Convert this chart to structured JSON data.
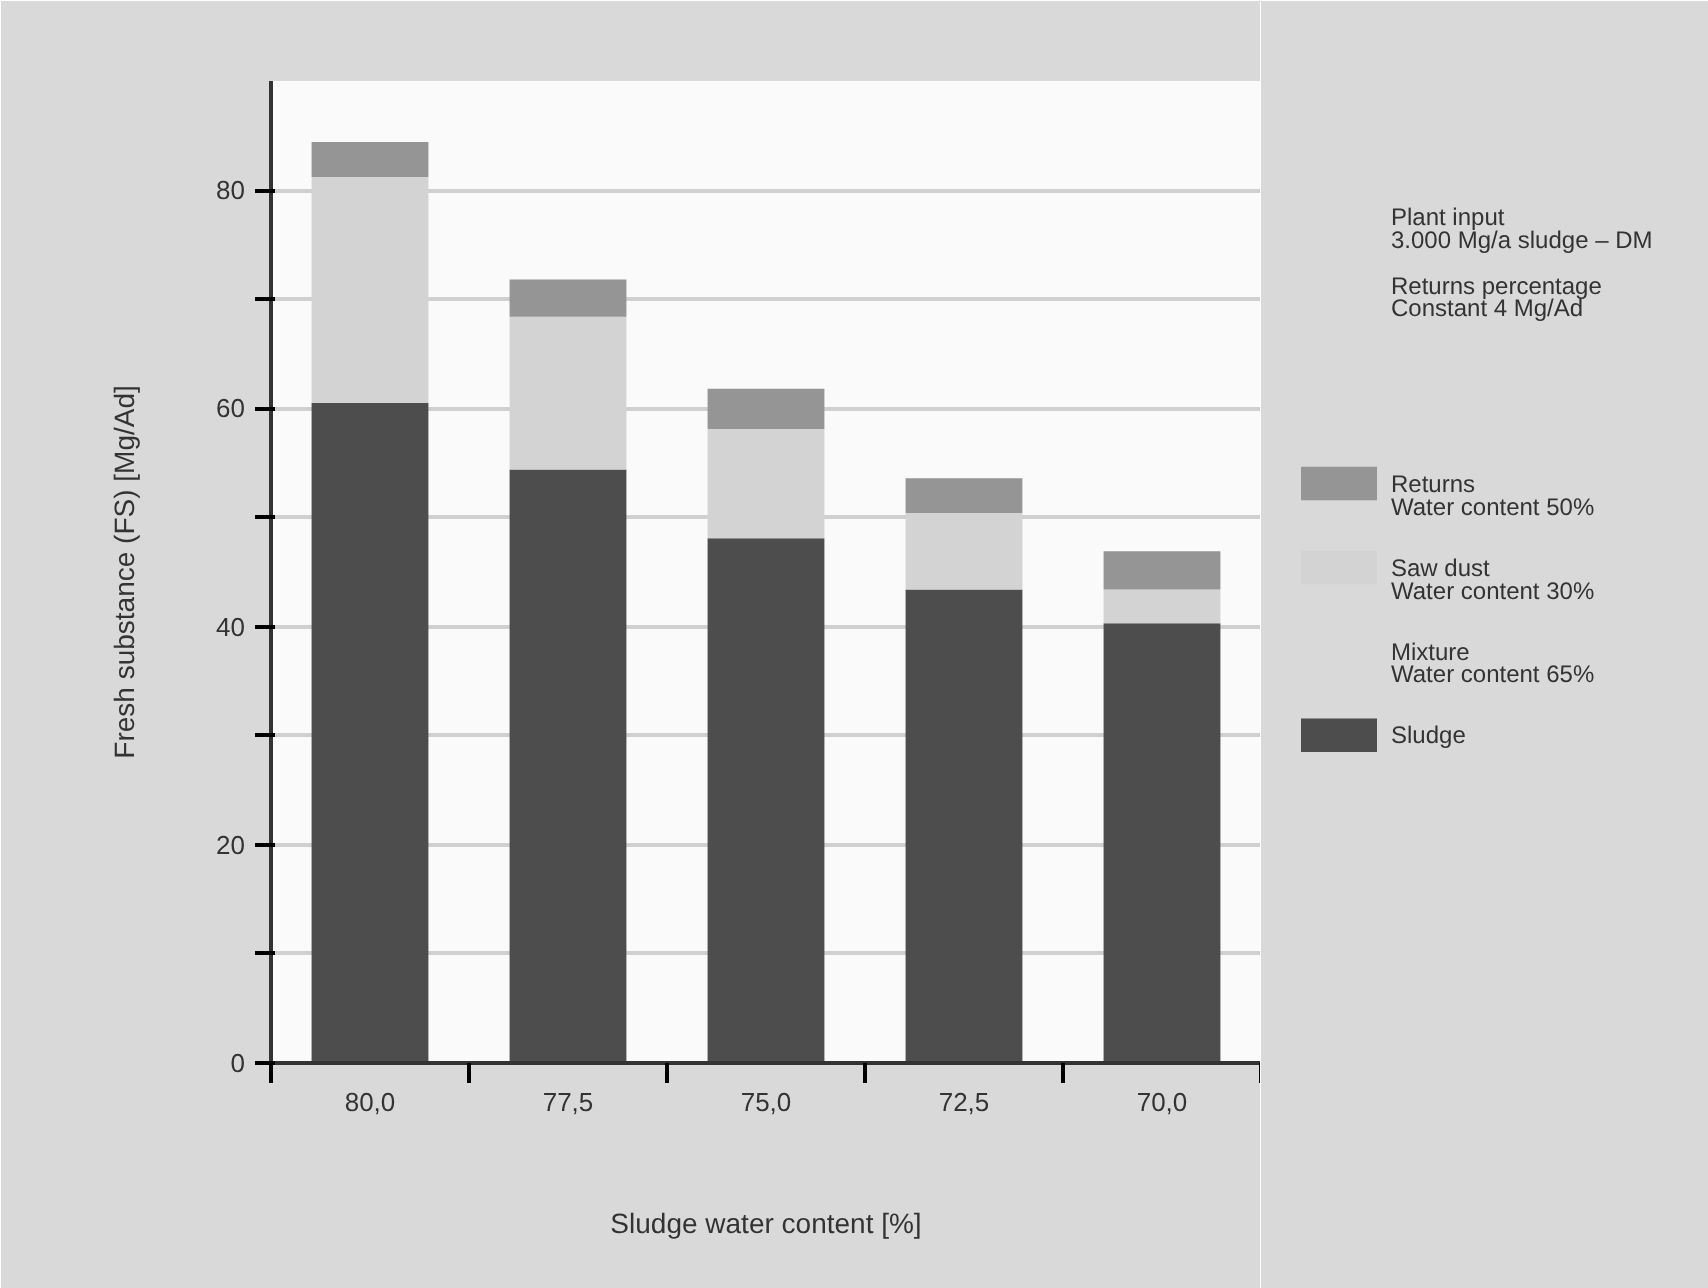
{
  "chart_data": {
    "type": "bar",
    "stacked": true,
    "categories": [
      "80,0",
      "77,5",
      "75,0",
      "72,5",
      "70,0"
    ],
    "xlabel": "Sludge water content [%]",
    "ylabel": "Fresh substance (FS) [Mg/Ad]",
    "series": [
      {
        "name": "Sludge",
        "color": "#4d4d4d",
        "values": [
          60.5,
          54.4,
          48.1,
          43.4,
          40.3
        ]
      },
      {
        "name": "Saw dust\nWater content 30%",
        "color": "#d3d3d3",
        "values": [
          20.7,
          14.0,
          10.0,
          7.0,
          3.1
        ]
      },
      {
        "name": "Returns\nWater content 50%",
        "color": "#959595",
        "values": [
          3.2,
          3.4,
          3.7,
          3.2,
          3.5
        ]
      }
    ],
    "ylim": [
      0,
      90
    ],
    "yticks": [
      0,
      {
        "value": 10,
        "label": null
      },
      20,
      {
        "value": 30,
        "label": null
      },
      40,
      {
        "value": 50,
        "label": null
      },
      60,
      {
        "value": 70,
        "label": null
      },
      80
    ],
    "grid": "y",
    "legend": "right",
    "annotations": [
      "Plant input\n3.000 Mg/a sludge – DM",
      "Returns percentage\nConstant 4 Mg/Ad",
      "Mixture\nWater content 65%"
    ]
  }
}
